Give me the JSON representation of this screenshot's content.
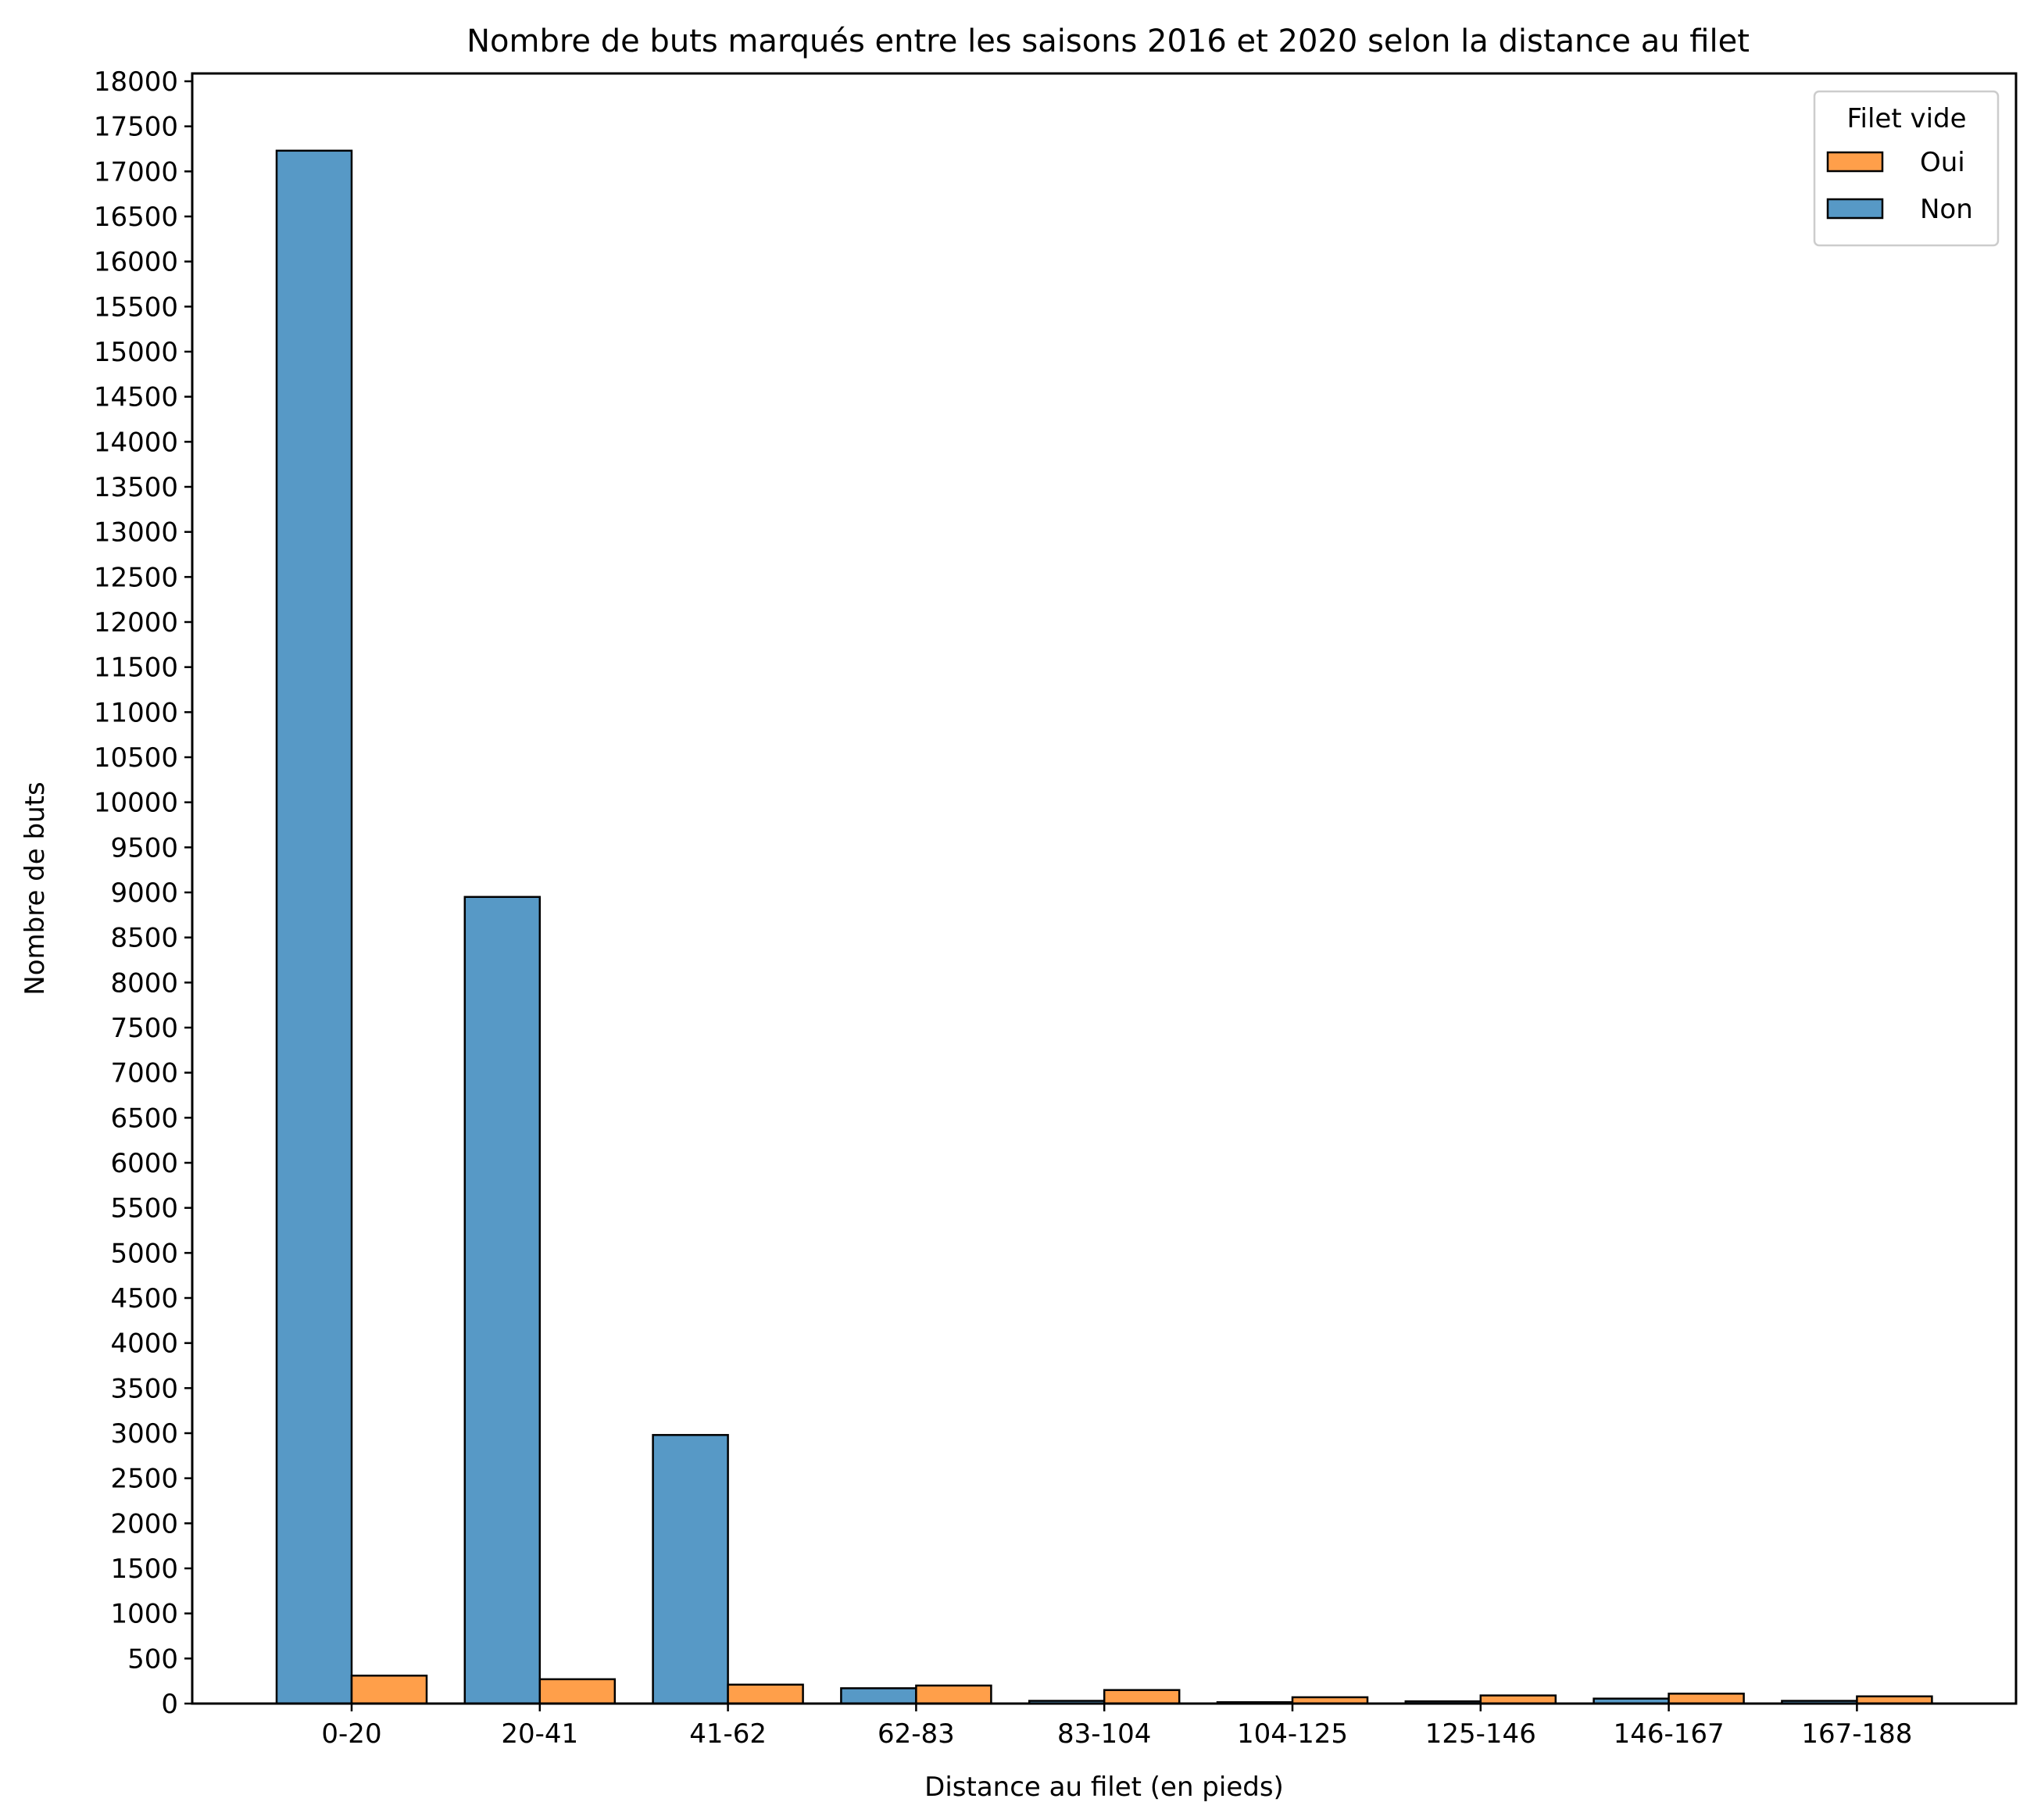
{
  "chart_data": {
    "type": "bar",
    "title": "Nombre de buts marqués entre les saisons 2016 et 2020 selon la distance au filet",
    "xlabel": "Distance au filet (en pieds)",
    "ylabel": "Nombre de buts",
    "ylim": [
      0,
      18000
    ],
    "ytick_step": 500,
    "grid": false,
    "categories": [
      "0-20",
      "20-41",
      "41-62",
      "62-83",
      "83-104",
      "104-125",
      "125-146",
      "146-167",
      "167-188"
    ],
    "series": [
      {
        "name": "Non",
        "color": "#5799c6",
        "values": [
          17230,
          8950,
          2980,
          170,
          30,
          15,
          25,
          55,
          30
        ]
      },
      {
        "name": "Oui",
        "color": "#ff9f4a",
        "values": [
          310,
          270,
          210,
          200,
          150,
          70,
          90,
          110,
          80
        ]
      }
    ],
    "legend": {
      "title": "Filet vide",
      "placement": "top-right",
      "entries": [
        {
          "label": "Oui",
          "color": "#ff9f4a"
        },
        {
          "label": "Non",
          "color": "#5799c6"
        }
      ]
    }
  }
}
